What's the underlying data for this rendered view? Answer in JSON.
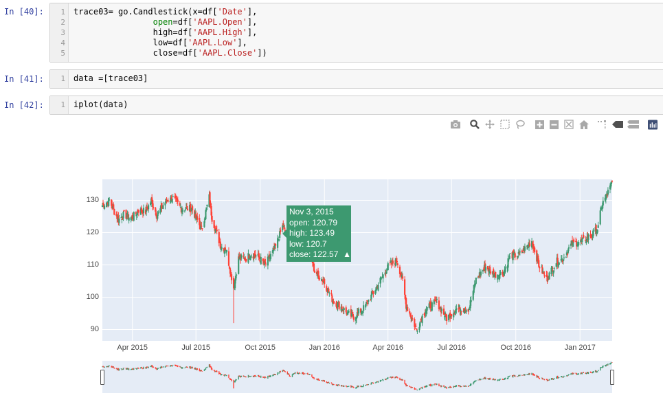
{
  "cells": [
    {
      "prompt": "In  [40]:",
      "line_numbers": [
        "1",
        "2",
        "3",
        "4",
        "5"
      ],
      "lines": [
        [
          {
            "t": "trace03= go.Candlestick(x=df[",
            "c": ""
          },
          {
            "t": "'Date'",
            "c": "str"
          },
          {
            "t": "],",
            "c": ""
          }
        ],
        [
          {
            "t": "                open",
            "c": "kw"
          },
          {
            "t": "=df[",
            "c": ""
          },
          {
            "t": "'AAPL.Open'",
            "c": "str"
          },
          {
            "t": "],",
            "c": ""
          }
        ],
        [
          {
            "t": "                high=df[",
            "c": ""
          },
          {
            "t": "'AAPL.High'",
            "c": "str"
          },
          {
            "t": "],",
            "c": ""
          }
        ],
        [
          {
            "t": "                low=df[",
            "c": ""
          },
          {
            "t": "'AAPL.Low'",
            "c": "str"
          },
          {
            "t": "],",
            "c": ""
          }
        ],
        [
          {
            "t": "                close=df[",
            "c": ""
          },
          {
            "t": "'AAPL.Close'",
            "c": "str"
          },
          {
            "t": "])",
            "c": ""
          }
        ]
      ]
    },
    {
      "prompt": "In  [41]:",
      "line_numbers": [
        "1"
      ],
      "lines": [
        [
          {
            "t": "data =[trace03]",
            "c": ""
          }
        ]
      ]
    },
    {
      "prompt": "In  [42]:",
      "line_numbers": [
        "1"
      ],
      "lines": [
        [
          {
            "t": "iplot(data)",
            "c": ""
          }
        ]
      ]
    }
  ],
  "toolbar": {
    "icons": [
      "camera-icon",
      "zoom-icon",
      "pan-icon",
      "box-select-icon",
      "lasso-icon",
      "zoom-in-icon",
      "zoom-out-icon",
      "autoscale-icon",
      "reset-axes-icon",
      "spike-lines-icon",
      "hover-closest-icon",
      "hover-compare-icon",
      "plotly-logo-icon"
    ]
  },
  "colors": {
    "increasing": "#3d9970",
    "decreasing": "#ff4136",
    "plot_bg": "#e5ecf6",
    "prompt": "#303F9F",
    "string": "#BA2121",
    "keyword": "#008000"
  },
  "chart_data": {
    "type": "candlestick",
    "title": "",
    "xlabel": "",
    "ylabel": "",
    "x_ticks": [
      "Apr 2015",
      "Jul 2015",
      "Oct 2015",
      "Jan 2016",
      "Apr 2016",
      "Jul 2016",
      "Oct 2016",
      "Jan 2017"
    ],
    "y_ticks": [
      90,
      100,
      110,
      120,
      130
    ],
    "ylim": [
      86.5,
      136.5
    ],
    "xlim": [
      "2015-02-17",
      "2017-02-16"
    ],
    "grid": true,
    "rangeslider": true,
    "tooltip": {
      "date": "Nov 3, 2015",
      "open": "open: 120.79",
      "high": "high: 123.49",
      "low": "low: 120.7",
      "close": "close: 122.57",
      "arrow": "▲"
    },
    "anchors": [
      [
        "2015-02-17",
        128.5
      ],
      [
        "2015-02-27",
        130.0
      ],
      [
        "2015-03-05",
        127.0
      ],
      [
        "2015-03-12",
        124.0
      ],
      [
        "2015-03-20",
        125.5
      ],
      [
        "2015-03-31",
        124.5
      ],
      [
        "2015-04-10",
        127.0
      ],
      [
        "2015-04-20",
        126.5
      ],
      [
        "2015-04-28",
        130.0
      ],
      [
        "2015-05-06",
        125.5
      ],
      [
        "2015-05-18",
        129.5
      ],
      [
        "2015-05-28",
        131.0
      ],
      [
        "2015-06-10",
        127.5
      ],
      [
        "2015-06-25",
        127.5
      ],
      [
        "2015-07-09",
        121.0
      ],
      [
        "2015-07-20",
        131.0
      ],
      [
        "2015-07-24",
        124.5
      ],
      [
        "2015-08-06",
        115.5
      ],
      [
        "2015-08-13",
        115.0
      ],
      [
        "2015-08-24",
        103.0
      ],
      [
        "2015-08-31",
        112.0
      ],
      [
        "2015-09-10",
        112.0
      ],
      [
        "2015-09-18",
        113.5
      ],
      [
        "2015-09-28",
        112.5
      ],
      [
        "2015-10-08",
        110.0
      ],
      [
        "2015-10-22",
        115.0
      ],
      [
        "2015-11-03",
        122.5
      ],
      [
        "2015-11-13",
        112.5
      ],
      [
        "2015-11-20",
        119.0
      ],
      [
        "2015-12-02",
        117.5
      ],
      [
        "2015-12-10",
        115.5
      ],
      [
        "2015-12-18",
        108.0
      ],
      [
        "2015-12-31",
        105.0
      ],
      [
        "2016-01-13",
        99.0
      ],
      [
        "2016-01-25",
        97.0
      ],
      [
        "2016-02-05",
        94.5
      ],
      [
        "2016-02-12",
        94.0
      ],
      [
        "2016-02-26",
        96.5
      ],
      [
        "2016-03-10",
        101.0
      ],
      [
        "2016-03-23",
        106.0
      ],
      [
        "2016-04-01",
        109.5
      ],
      [
        "2016-04-14",
        111.5
      ],
      [
        "2016-04-22",
        105.0
      ],
      [
        "2016-04-27",
        97.5
      ],
      [
        "2016-05-12",
        90.0
      ],
      [
        "2016-05-24",
        96.0
      ],
      [
        "2016-06-02",
        97.5
      ],
      [
        "2016-06-10",
        98.5
      ],
      [
        "2016-06-24",
        93.5
      ],
      [
        "2016-07-08",
        96.5
      ],
      [
        "2016-07-26",
        96.5
      ],
      [
        "2016-08-05",
        105.5
      ],
      [
        "2016-08-18",
        109.5
      ],
      [
        "2016-09-01",
        107.0
      ],
      [
        "2016-09-13",
        107.5
      ],
      [
        "2016-09-23",
        113.0
      ],
      [
        "2016-10-06",
        113.0
      ],
      [
        "2016-10-24",
        117.5
      ],
      [
        "2016-11-03",
        110.0
      ],
      [
        "2016-11-14",
        105.5
      ],
      [
        "2016-11-28",
        111.0
      ],
      [
        "2016-12-08",
        112.0
      ],
      [
        "2016-12-20",
        116.5
      ],
      [
        "2017-01-06",
        117.5
      ],
      [
        "2017-01-18",
        119.5
      ],
      [
        "2017-01-27",
        121.5
      ],
      [
        "2017-02-01",
        128.5
      ],
      [
        "2017-02-09",
        132.0
      ],
      [
        "2017-02-16",
        135.5
      ]
    ]
  }
}
